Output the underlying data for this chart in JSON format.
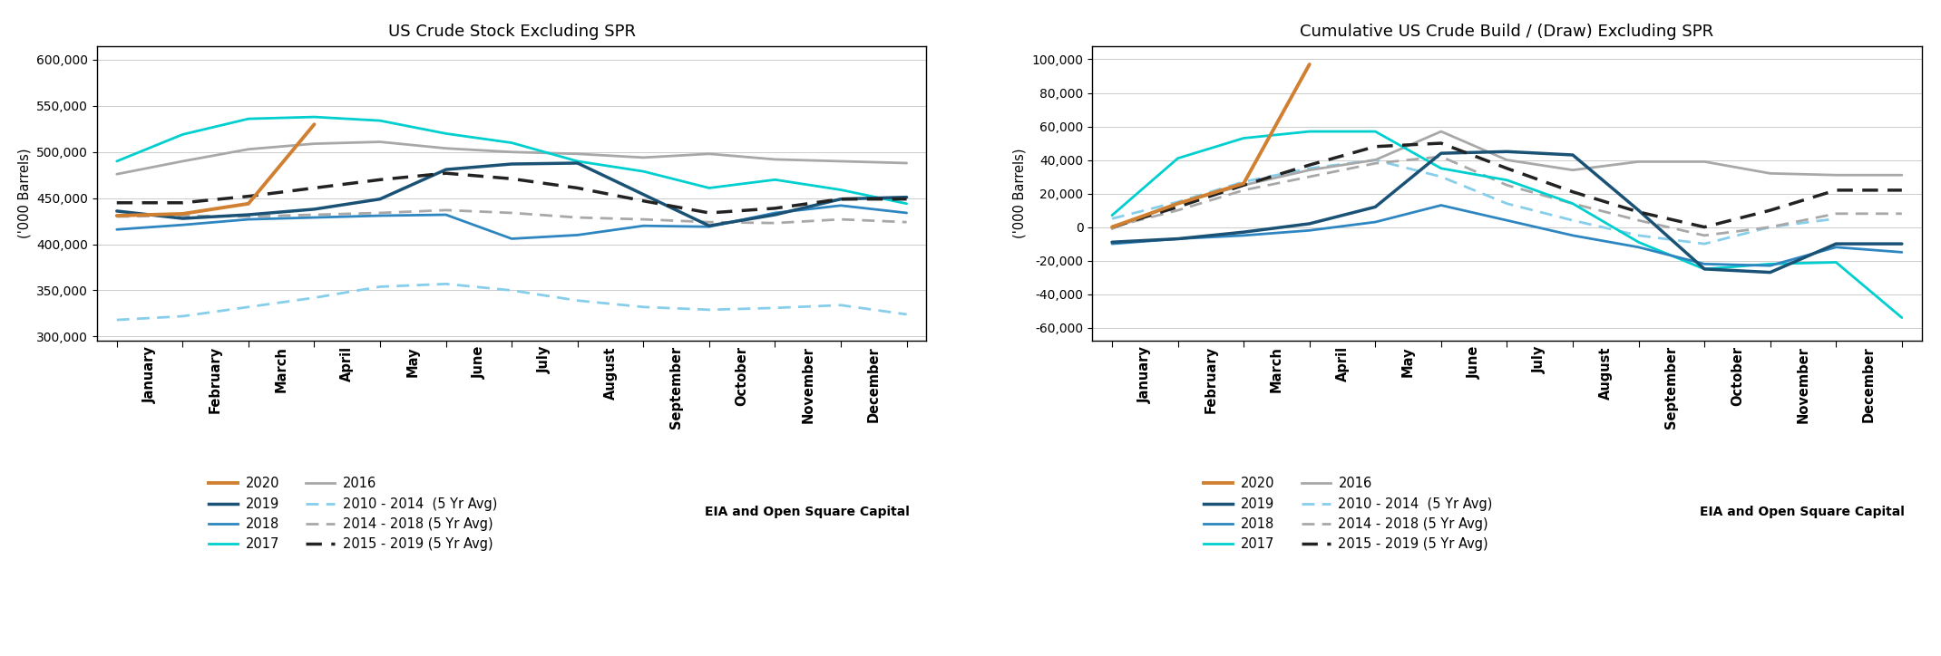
{
  "title1": "US Crude Stock Excluding SPR",
  "title2": "Cumulative US Crude Build / (Draw) Excluding SPR",
  "ylabel": "('000 Barrels)",
  "months": [
    "January",
    "February",
    "March",
    "April",
    "May",
    "June",
    "July",
    "August",
    "September",
    "October",
    "November",
    "December"
  ],
  "footnote": "EIA and Open Square Capital",
  "styles": {
    "2020": {
      "color": "#D08030",
      "lw": 2.8,
      "zorder": 10
    },
    "2019": {
      "color": "#1A5276",
      "lw": 2.5,
      "zorder": 8
    },
    "2018": {
      "color": "#2E86C1",
      "lw": 2.0,
      "zorder": 7
    },
    "2017": {
      "color": "#00CFCF",
      "lw": 2.0,
      "zorder": 6
    },
    "2016": {
      "color": "#A8A8A8",
      "lw": 2.0,
      "zorder": 5
    },
    "2010-2014": {
      "color": "#87CEEB",
      "lw": 2.0,
      "zorder": 3
    },
    "2014-2018": {
      "color": "#A8A8A8",
      "lw": 2.0,
      "zorder": 3
    },
    "2015-2019": {
      "color": "#222222",
      "lw": 2.5,
      "zorder": 9
    }
  },
  "chart1_ylim": [
    295000,
    615000
  ],
  "chart1_yticks": [
    300000,
    350000,
    400000,
    450000,
    500000,
    550000,
    600000
  ],
  "chart1": {
    "2020": [
      431,
      433,
      444,
      530,
      null,
      null,
      null,
      null,
      null,
      null,
      null,
      null,
      null
    ],
    "2019": [
      436,
      428,
      432,
      438,
      449,
      481,
      487,
      488,
      454,
      420,
      432,
      449,
      451
    ],
    "2018": [
      416,
      421,
      427,
      429,
      431,
      432,
      406,
      410,
      420,
      419,
      434,
      442,
      434
    ],
    "2017": [
      490,
      519,
      536,
      538,
      534,
      520,
      510,
      490,
      479,
      461,
      470,
      459,
      444
    ],
    "2016": [
      476,
      490,
      503,
      509,
      511,
      504,
      500,
      498,
      494,
      498,
      492,
      490,
      488
    ],
    "2010-2014": [
      318,
      322,
      332,
      342,
      354,
      357,
      350,
      339,
      332,
      329,
      331,
      334,
      324
    ],
    "2014-2018": [
      430,
      431,
      430,
      432,
      434,
      437,
      434,
      429,
      427,
      424,
      423,
      427,
      424
    ],
    "2015-2019": [
      445,
      445,
      452,
      461,
      470,
      477,
      471,
      461,
      447,
      434,
      439,
      449,
      449
    ]
  },
  "chart2_ylim": [
    -68000,
    108000
  ],
  "chart2_yticks": [
    -60000,
    -40000,
    -20000,
    0,
    20000,
    40000,
    60000,
    80000,
    100000
  ],
  "chart2": {
    "2020": [
      0,
      14,
      26,
      97,
      null,
      null,
      null,
      null,
      null,
      null,
      null,
      null,
      null
    ],
    "2019": [
      -9,
      -7,
      -3,
      2,
      12,
      44,
      45,
      43,
      10,
      -25,
      -27,
      -10,
      -10
    ],
    "2018": [
      -10,
      -7,
      -5,
      -2,
      3,
      13,
      4,
      -5,
      -12,
      -22,
      -23,
      -12,
      -15
    ],
    "2017": [
      7,
      41,
      53,
      57,
      57,
      35,
      28,
      14,
      -9,
      -25,
      -22,
      -21,
      -54
    ],
    "2016": [
      -1,
      14,
      25,
      34,
      40,
      57,
      40,
      34,
      39,
      39,
      32,
      31,
      31
    ],
    "2010-2014": [
      5,
      15,
      27,
      35,
      40,
      30,
      14,
      4,
      -5,
      -10,
      0,
      5,
      null
    ],
    "2014-2018": [
      0,
      10,
      22,
      30,
      38,
      42,
      25,
      14,
      4,
      -5,
      0,
      8,
      8
    ],
    "2015-2019": [
      0,
      12,
      25,
      37,
      48,
      50,
      35,
      21,
      9,
      0,
      10,
      22,
      22
    ]
  },
  "legend_col1": [
    "2020",
    "2018",
    "2016",
    "2014 - 2018 (5 Yr Avg)"
  ],
  "legend_col2": [
    "2019",
    "2017",
    "2010 - 2014  (5 Yr Avg)",
    "2015 - 2019 (5 Yr Avg)"
  ],
  "legend_col1_keys": [
    "2020",
    "2018",
    "2016",
    "2014-2018"
  ],
  "legend_col2_keys": [
    "2019",
    "2017",
    "2010-2014",
    "2015-2019"
  ]
}
